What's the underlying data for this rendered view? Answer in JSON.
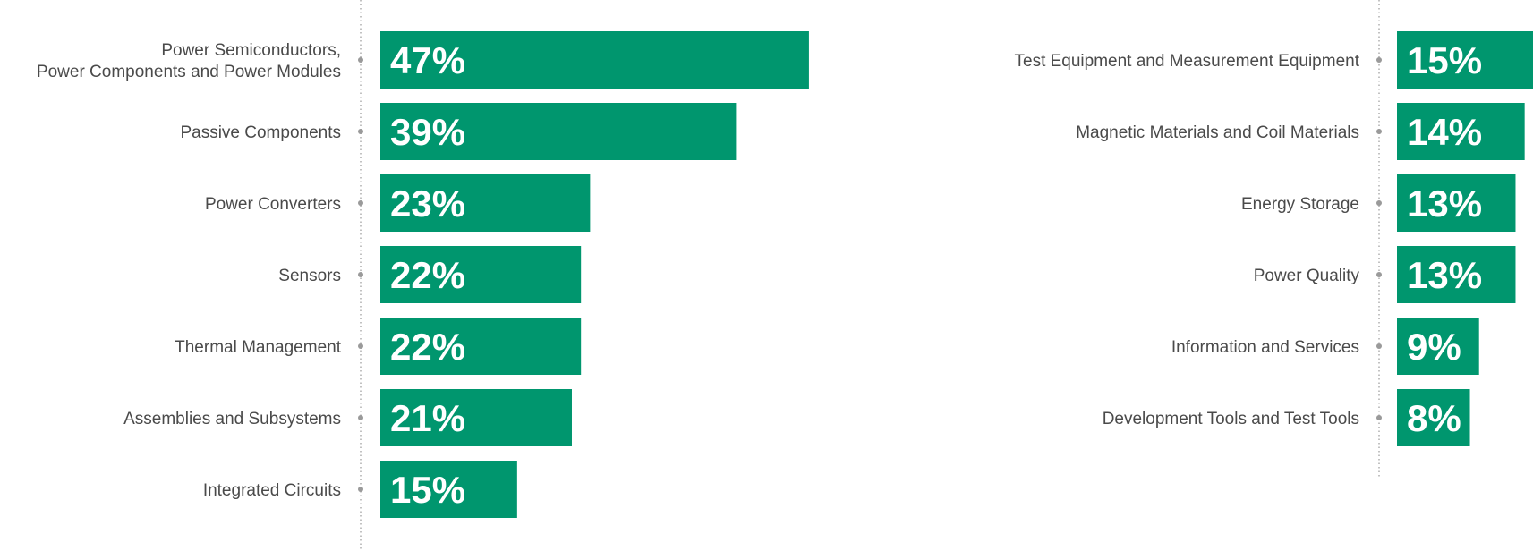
{
  "colors": {
    "bar": "#00966e",
    "label": "#4a4a4a",
    "axis": "#9a9a9a",
    "value_text": "#ffffff"
  },
  "chart_data": [
    {
      "type": "bar",
      "orientation": "horizontal",
      "title": "",
      "xlabel": "",
      "ylabel": "",
      "xlim": [
        0,
        47
      ],
      "grid": false,
      "categories": [
        [
          "Power Semiconductors,",
          "Power Components and Power Modules"
        ],
        [
          "Passive Components"
        ],
        [
          "Power Converters"
        ],
        [
          "Sensors"
        ],
        [
          "Thermal Management"
        ],
        [
          "Assemblies and Subsystems"
        ],
        [
          "Integrated Circuits"
        ]
      ],
      "values": [
        47,
        39,
        23,
        22,
        22,
        21,
        15
      ],
      "value_labels": [
        "47%",
        "39%",
        "23%",
        "22%",
        "22%",
        "21%",
        "15%"
      ]
    },
    {
      "type": "bar",
      "orientation": "horizontal",
      "title": "",
      "xlabel": "",
      "ylabel": "",
      "xlim": [
        0,
        47
      ],
      "grid": false,
      "categories": [
        [
          "Test Equipment and Measurement Equipment"
        ],
        [
          "Magnetic Materials and Coil Materials"
        ],
        [
          "Energy Storage"
        ],
        [
          "Power Quality"
        ],
        [
          "Information and Services"
        ],
        [
          "Development Tools and Test Tools"
        ]
      ],
      "values": [
        15,
        14,
        13,
        13,
        9,
        8
      ],
      "value_labels": [
        "15%",
        "14%",
        "13%",
        "13%",
        "9%",
        "8%"
      ]
    }
  ]
}
